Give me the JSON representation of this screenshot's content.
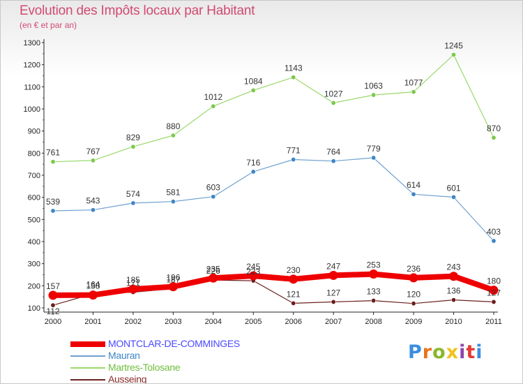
{
  "header": {
    "title": "Evolution des Impôts locaux par Habitant",
    "subtitle": "(en € et par an)"
  },
  "logo": {
    "text": "Proxiti",
    "colors": [
      "#3b8ede",
      "#e8731e",
      "#86b82b",
      "#f0c21c",
      "#8e44ad",
      "#e53935",
      "#3b8ede"
    ]
  },
  "chart_data": {
    "type": "line",
    "x": [
      2000,
      2001,
      2002,
      2003,
      2004,
      2005,
      2006,
      2007,
      2008,
      2009,
      2010,
      2011
    ],
    "xlim": [
      2000,
      2011
    ],
    "ylim": [
      100,
      1300
    ],
    "yticks": [
      100,
      200,
      300,
      400,
      500,
      600,
      700,
      800,
      900,
      1000,
      1100,
      1200,
      1300
    ],
    "grid": false,
    "legend_position": "bottom-left",
    "series": [
      {
        "name": "MONTCLAR-DE-COMMINGES",
        "color": "#ee0000",
        "labelColor": "#4a4aff",
        "thick": true,
        "values": [
          157,
          158,
          185,
          196,
          235,
          245,
          230,
          247,
          253,
          236,
          243,
          180
        ],
        "labels": [
          "157",
          "158",
          "185",
          "196",
          "235",
          "245",
          "230",
          "247",
          "253",
          "236",
          "243",
          "180"
        ]
      },
      {
        "name": "Mauran",
        "color": "#6fa0cf",
        "markerColor": "#3d86c6",
        "labelColor": "#3d86c6",
        "values": [
          539,
          543,
          574,
          581,
          603,
          716,
          771,
          764,
          779,
          614,
          601,
          403
        ],
        "labels": [
          "539",
          "543",
          "574",
          "581",
          "603",
          "716",
          "771",
          "764",
          "779",
          "614",
          "601",
          "403"
        ]
      },
      {
        "name": "Martres-Tolosane",
        "color": "#99d86a",
        "markerColor": "#7cc94a",
        "labelColor": "#6fbf3e",
        "values": [
          761,
          767,
          829,
          880,
          1012,
          1084,
          1143,
          1027,
          1063,
          1077,
          1245,
          870
        ],
        "labels": [
          "761",
          "767",
          "829",
          "880",
          "1012",
          "1084",
          "1143",
          "1027",
          "1063",
          "1077",
          "1245",
          "870"
        ]
      },
      {
        "name": "Ausseing",
        "color": "#6b2020",
        "markerColor": "#6b1c1c",
        "labelColor": "#8a2a2a",
        "values": [
          112,
          164,
          171,
          187,
          226,
          223,
          121,
          127,
          133,
          120,
          136,
          127
        ],
        "labels": [
          "112",
          "164",
          "171",
          "187",
          "226",
          "223",
          "121",
          "127",
          "133",
          "120",
          "136",
          "127"
        ]
      }
    ]
  }
}
